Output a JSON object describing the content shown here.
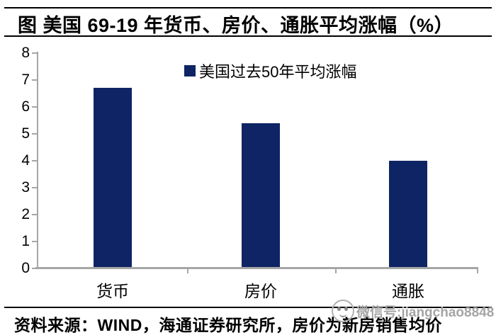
{
  "page": {
    "title": "图  美国 69-19 年货币、房价、通胀平均涨幅（%）",
    "source_note": "资料来源：WIND，海通证券研究所，房价为新房销售均价",
    "watermark": {
      "icon": "wechat-smiley-icon",
      "text": "微信号:jiangchao8848"
    }
  },
  "colors": {
    "bar": "#0e2464",
    "axis": "#a6a6a6",
    "text": "#000000",
    "watermark_text": "#a5a5a5",
    "background": "#ffffff"
  },
  "chart_data": {
    "type": "bar",
    "title": "图 美国 69-19 年货币、房价、通胀平均涨幅（%）",
    "categories": [
      "货币",
      "房价",
      "通胀"
    ],
    "series": [
      {
        "name": "美国过去50年平均涨幅",
        "values": [
          6.7,
          5.4,
          4.0
        ]
      }
    ],
    "xlabel": "",
    "ylabel": "",
    "ylim": [
      0,
      8
    ],
    "yticks": [
      0,
      1,
      2,
      3,
      4,
      5,
      6,
      7,
      8
    ],
    "grid": false,
    "legend_position": "top-center",
    "bar_color": "#0e2464"
  }
}
